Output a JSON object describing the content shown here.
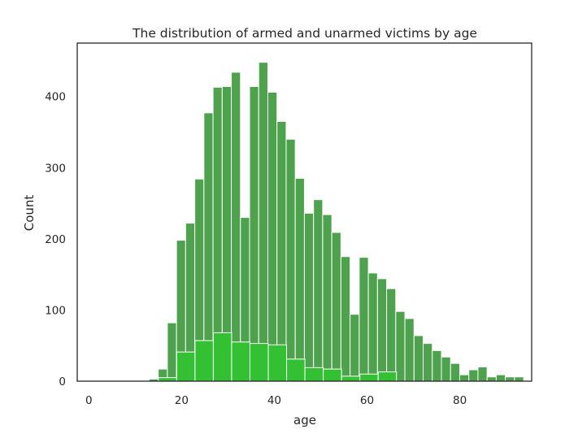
{
  "chart_data": {
    "type": "bar",
    "title": "The distribution of armed and unarmed victims by age",
    "xlabel": "age",
    "ylabel": "Count",
    "xlim": [
      -2.5,
      95.5
    ],
    "ylim": [
      0,
      475
    ],
    "xticks": [
      0,
      20,
      40,
      60,
      80
    ],
    "yticks": [
      0,
      100,
      200,
      300,
      400
    ],
    "grid": false,
    "legend": "none",
    "series": [
      {
        "color": "#4ea24e",
        "edge_color": "#ffffff",
        "bin_start": 13,
        "bin_width": 1.97,
        "values": [
          3,
          17,
          82,
          198,
          222,
          284,
          377,
          413,
          414,
          434,
          230,
          414,
          448,
          406,
          365,
          340,
          285,
          236,
          255,
          234,
          209,
          175,
          94,
          174,
          152,
          144,
          130,
          98,
          88,
          64,
          53,
          43,
          34,
          25,
          9,
          16,
          20,
          6,
          9,
          6,
          6
        ]
      },
      {
        "color": "#33c133",
        "edge_color": "#ffffff",
        "bin_start": 15,
        "bin_width": 3.95,
        "values": [
          5,
          41,
          57,
          68,
          55,
          53,
          51,
          31,
          19,
          17,
          7,
          10,
          13
        ]
      }
    ]
  }
}
